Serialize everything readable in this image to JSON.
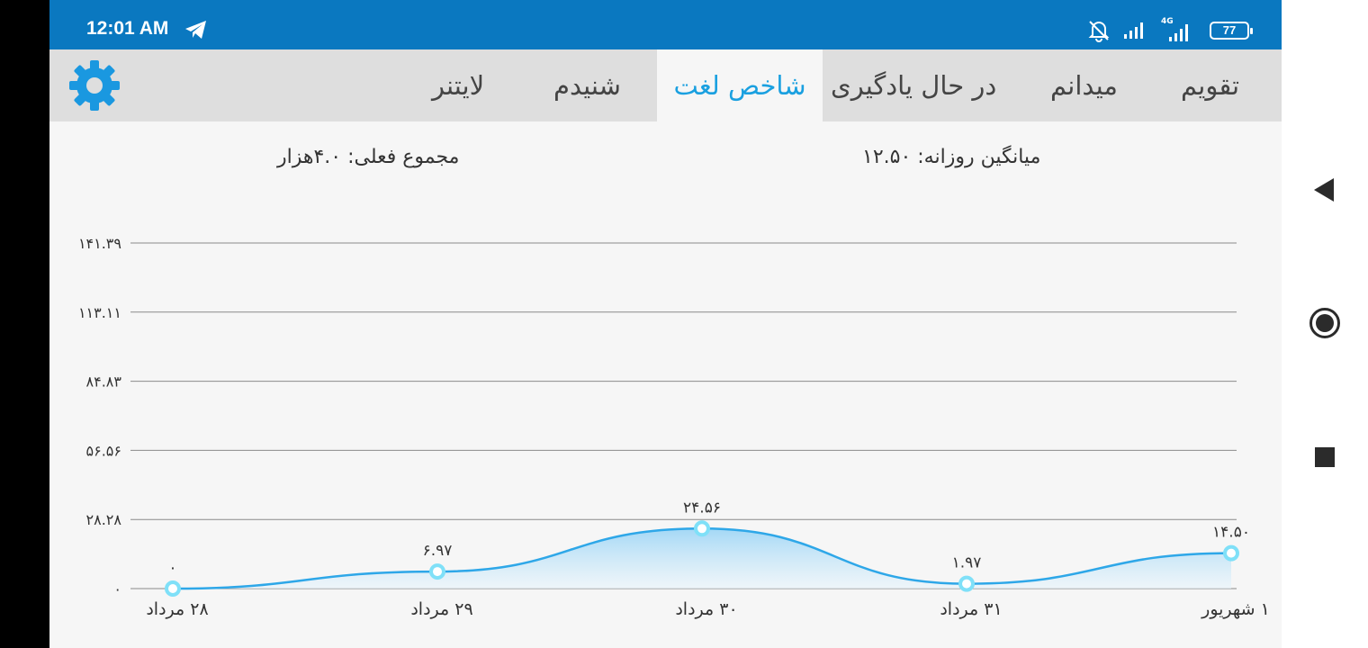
{
  "status_bar": {
    "time": "12:01 AM",
    "network_type": "4G",
    "battery": "77"
  },
  "tabs": [
    "تقویم",
    "میدانم",
    "در حال یادگیری",
    "شاخص لغت",
    "شنیدم",
    "لایتنر"
  ],
  "active_tab": "شاخص لغت",
  "summary": {
    "daily_average": "میانگین روزانه: ۱۲.۵۰",
    "total": "مجموع فعلی: ۴.۰هزار"
  },
  "colors": {
    "status_bar": "#0a78c0",
    "accent": "#1aa0e0",
    "line": "#2ea7e8",
    "marker": "#7fe0f8"
  },
  "chart_data": {
    "type": "area",
    "categories": [
      "۲۸ مرداد",
      "۲۹ مرداد",
      "۳۰ مرداد",
      "۳۱ مرداد",
      "۱ شهریور"
    ],
    "values": [
      0,
      6.97,
      24.56,
      1.97,
      14.5
    ],
    "value_labels": [
      "۰",
      "۶.۹۷",
      "۲۴.۵۶",
      "۱.۹۷",
      "۱۴.۵۰"
    ],
    "y_ticks": [
      0,
      28.28,
      56.56,
      84.83,
      113.11,
      141.39
    ],
    "y_tick_labels": [
      "۰",
      "۲۸.۲۸",
      "۵۶.۵۶",
      "۸۴.۸۳",
      "۱۱۳.۱۱",
      "۱۴۱.۳۹"
    ],
    "ylim": [
      0,
      141.39
    ],
    "grid": true,
    "legend": "none"
  },
  "nav": {
    "back_icon": "back-triangle-icon",
    "home_icon": "home-circle-icon",
    "recents_icon": "recents-square-icon"
  }
}
